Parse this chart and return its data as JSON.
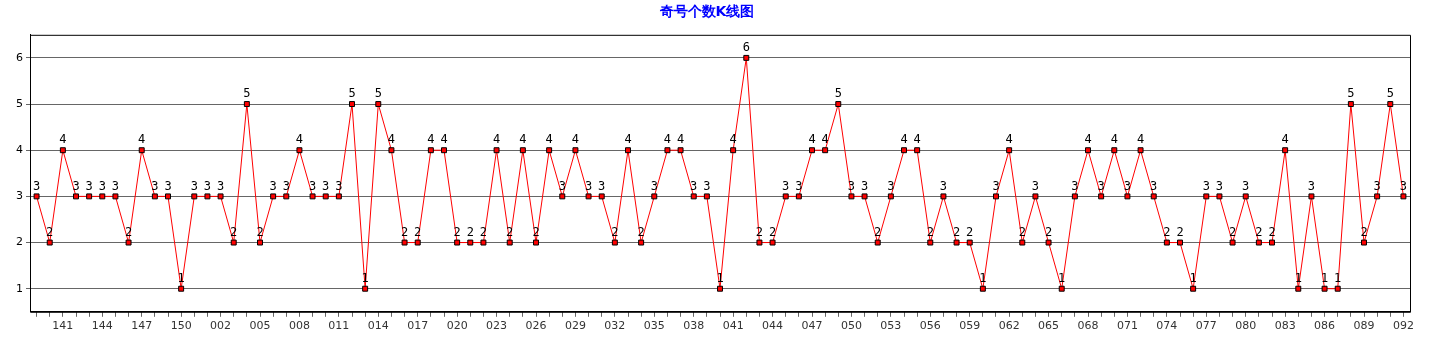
{
  "chart_data": {
    "type": "line",
    "title": "奇号个数K线图",
    "categories": [
      null,
      null,
      "141",
      null,
      null,
      "144",
      null,
      null,
      "147",
      null,
      null,
      "150",
      null,
      null,
      "002",
      null,
      null,
      "005",
      null,
      null,
      "008",
      null,
      null,
      "011",
      null,
      null,
      "014",
      null,
      null,
      "017",
      null,
      null,
      "020",
      null,
      null,
      "023",
      null,
      null,
      "026",
      null,
      null,
      "029",
      null,
      null,
      "032",
      null,
      null,
      "035",
      null,
      null,
      "038",
      null,
      null,
      "041",
      null,
      null,
      "044",
      null,
      null,
      "047",
      null,
      null,
      "050",
      null,
      null,
      "053",
      null,
      null,
      "056",
      null,
      null,
      "059",
      null,
      null,
      "062",
      null,
      null,
      "065",
      null,
      null,
      "068",
      null,
      null,
      "071",
      null,
      null,
      "074",
      null,
      null,
      "077",
      null,
      null,
      "080",
      null,
      null,
      "083",
      null,
      null,
      "086",
      null,
      null,
      "089",
      null,
      null,
      "092"
    ],
    "series": [
      {
        "color": "#ff0000",
        "values": [
          3,
          2,
          4,
          3,
          3,
          3,
          3,
          2,
          4,
          3,
          3,
          1,
          3,
          3,
          3,
          2,
          5,
          2,
          3,
          3,
          4,
          3,
          3,
          3,
          5,
          1,
          5,
          4,
          2,
          2,
          4,
          4,
          2,
          2,
          2,
          4,
          2,
          4,
          2,
          4,
          3,
          4,
          3,
          3,
          2,
          4,
          2,
          3,
          4,
          4,
          3,
          3,
          1,
          4,
          6,
          2,
          2,
          3,
          3,
          4,
          4,
          5,
          3,
          3,
          2,
          3,
          4,
          4,
          2,
          3,
          2,
          2,
          1,
          3,
          4,
          2,
          3,
          2,
          1,
          3,
          4,
          3,
          4,
          3,
          4,
          3,
          2,
          2,
          1,
          3,
          3,
          2,
          3,
          2,
          2,
          4,
          1,
          3,
          1,
          1,
          5,
          2,
          3,
          5,
          3
        ]
      }
    ],
    "ylim": [
      0.5,
      6.5
    ],
    "yticks": [
      1,
      2,
      3,
      4,
      5,
      6
    ],
    "grid": "y",
    "legend": false,
    "marker": "square",
    "line_style": "solid",
    "data_labels": true
  }
}
